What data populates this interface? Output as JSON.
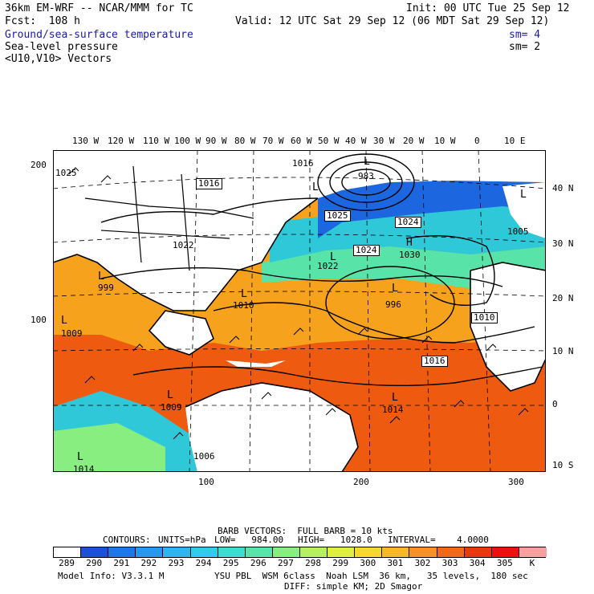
{
  "header": {
    "model_line": "36km EM-WRF -- NCAR/MMM for TC",
    "init_line": "Init: 00 UTC Tue 25 Sep 12",
    "fcst_line": "Fcst:  108 h",
    "valid_line": "Valid: 12 UTC Sat 29 Sep 12 (06 MDT Sat 29 Sep 12)",
    "field1": "Ground/sea-surface temperature",
    "field1_sm": "sm= 4",
    "field2": "Sea-level pressure",
    "field2_sm": "sm= 2",
    "field3": "<U10,V10> Vectors"
  },
  "map": {
    "lon_labels": [
      "130 W",
      "120 W",
      "110 W",
      "100 W",
      "90 W",
      "80 W",
      "70 W",
      "60 W",
      "50 W",
      "40 W",
      "30 W",
      "20 W",
      "10 W",
      "0",
      "10 E"
    ],
    "lat_labels": [
      "40 N",
      "30 N",
      "20 N",
      "10 N",
      "0",
      "10 S"
    ],
    "left_ticks": [
      "200",
      "100"
    ],
    "bottom_ticks": [
      "100",
      "200",
      "300"
    ],
    "pressure_labels": [
      "1016",
      "1016",
      "983",
      "1025",
      "1024",
      "1024",
      "1030",
      "1005",
      "1022",
      "999",
      "1009",
      "1010",
      "1010",
      "1014",
      "1016",
      "1009",
      "1014",
      "1006",
      "1025",
      "1022",
      "996"
    ],
    "high_low_letters": [
      "L",
      "L",
      "H",
      "L",
      "L",
      "L",
      "L",
      "L",
      "L",
      "L",
      "L",
      "L"
    ],
    "colors": {
      "sea_warm": "#ee5a10",
      "sea_mid": "#f7a21c",
      "sea_cool": "#2ec8d8",
      "sea_cold": "#1c66e0",
      "land": "#ffffff"
    }
  },
  "footer": {
    "barb_line": "BARB VECTORS:  FULL BARB = 10 kts",
    "contours_label": "CONTOURS:",
    "units": "UNITS=hPa",
    "low": "LOW=   984.00",
    "high": "HIGH=   1028.0",
    "interval": "INTERVAL=    4.0000",
    "colorbar_labels": [
      "289",
      "290",
      "291",
      "292",
      "293",
      "294",
      "295",
      "296",
      "297",
      "298",
      "299",
      "300",
      "301",
      "302",
      "303",
      "304",
      "305",
      "K"
    ],
    "colorbar_colors": [
      "#ffffff",
      "#1c50d8",
      "#1c78e8",
      "#2898ee",
      "#30b4f0",
      "#30ccec",
      "#3cdcd0",
      "#58e4a8",
      "#88ee80",
      "#b4f060",
      "#e0f040",
      "#f8d830",
      "#f8b828",
      "#f89028",
      "#f06818",
      "#e83810",
      "#ee1010",
      "#f8a0a0"
    ],
    "model_info": "Model Info: V3.3.1 M",
    "physics": "YSU PBL  WSM 6class  Noah LSM  36 km,   35 levels,  180 sec",
    "diff": "DIFF: simple KM; 2D Smagor"
  }
}
